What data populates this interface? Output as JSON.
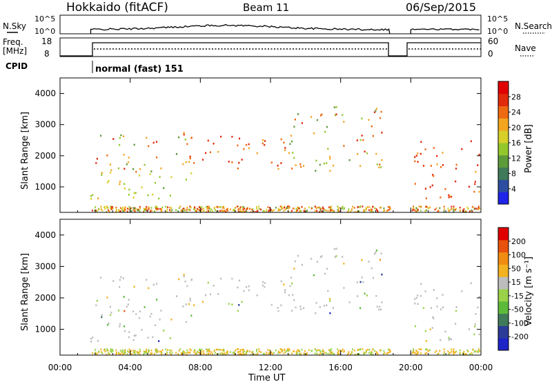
{
  "header": {
    "station": "Hokkaido (fitACF)",
    "beam": "Beam 11",
    "date": "06/Sep/2015"
  },
  "noise_panel": {
    "left_label": "N.Sky",
    "right_label": "N.Search",
    "ticks": [
      "10^5",
      "10^0"
    ]
  },
  "freq_panel": {
    "left_label_line1": "Freq.",
    "left_label_line2": "[MHz]",
    "left_ticks": [
      "18",
      "8"
    ],
    "right_label": "Nave",
    "right_ticks": [
      "60",
      "0"
    ]
  },
  "cpid": {
    "label": "CPID",
    "mode": "normal (fast) 151"
  },
  "chart_data": [
    {
      "type": "heatmap",
      "title": "Power",
      "ylabel": "Slant Range [km]",
      "ylim": [
        180,
        4500
      ],
      "yticks": [
        "4000",
        "3000",
        "2000",
        "1000"
      ],
      "colorbar": {
        "label": "Power [dB]",
        "ticks": [
          "28",
          "24",
          "20",
          "16",
          "12",
          "8",
          "4"
        ],
        "colors": [
          "#1e24e8",
          "#2c4da0",
          "#3f7a5a",
          "#5d9a3a",
          "#93c72c",
          "#d7cf2a",
          "#f3a51f",
          "#ee6a12",
          "#e22a0c",
          "#e00000"
        ]
      },
      "features_utc_hours": [
        {
          "x0": 1.7,
          "x1": 8.0,
          "y0": 600,
          "y1": 1500,
          "level": "medium"
        },
        {
          "x0": 2.0,
          "x1": 7.5,
          "y0": 1500,
          "y1": 2800,
          "level": "mixed"
        },
        {
          "x0": 7.0,
          "x1": 13.0,
          "y0": 1600,
          "y1": 2700,
          "level": "high"
        },
        {
          "x0": 13.0,
          "x1": 18.5,
          "y0": 1500,
          "y1": 3600,
          "level": "mixed"
        },
        {
          "x0": 20.0,
          "x1": 24.0,
          "y0": 600,
          "y1": 2500,
          "level": "high"
        }
      ]
    },
    {
      "type": "heatmap",
      "title": "Velocity",
      "ylabel": "Slant Range [km]",
      "ylim": [
        180,
        4500
      ],
      "yticks": [
        "4000",
        "3000",
        "2000",
        "1000"
      ],
      "colorbar": {
        "label": "Velocity [m s⁻¹]",
        "ticks": [
          "200",
          "100",
          "50",
          "15",
          "-15",
          "-50",
          "-100",
          "-200"
        ],
        "colors": [
          "#1e24c8",
          "#2c3c98",
          "#3f7a5a",
          "#5cba3a",
          "#9ad24a",
          "#bdbdbd",
          "#f3b21f",
          "#f08c12",
          "#e8520c",
          "#e00000"
        ]
      }
    }
  ],
  "x_axis": {
    "label": "Time UT",
    "ticks": [
      "00:00",
      "04:00",
      "08:00",
      "12:00",
      "16:00",
      "20:00",
      "00:00"
    ],
    "range_hours": [
      0,
      24
    ]
  },
  "data_gap_hours": [
    18.8,
    20.0
  ]
}
